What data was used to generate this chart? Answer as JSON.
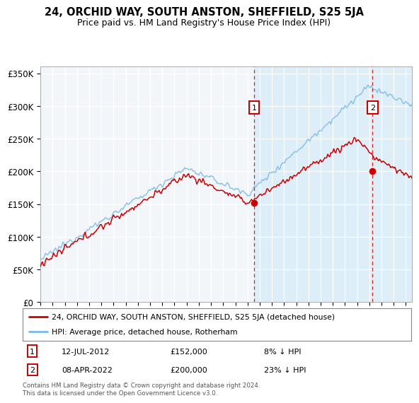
{
  "title": "24, ORCHID WAY, SOUTH ANSTON, SHEFFIELD, S25 5JA",
  "subtitle": "Price paid vs. HM Land Registry's House Price Index (HPI)",
  "legend_line1": "24, ORCHID WAY, SOUTH ANSTON, SHEFFIELD, S25 5JA (detached house)",
  "legend_line2": "HPI: Average price, detached house, Rotherham",
  "annotation1": {
    "label": "1",
    "date": "12-JUL-2012",
    "price": "£152,000",
    "note": "8% ↓ HPI"
  },
  "annotation2": {
    "label": "2",
    "date": "08-APR-2022",
    "price": "£200,000",
    "note": "23% ↓ HPI"
  },
  "footer": "Contains HM Land Registry data © Crown copyright and database right 2024.\nThis data is licensed under the Open Government Licence v3.0.",
  "hpi_color": "#7ab8e8",
  "price_color": "#cc0000",
  "dashed_color": "#cc0000",
  "bg_color_left": "#f0f4f8",
  "bg_color_right": "#ddeeff",
  "ylim": [
    0,
    360000
  ],
  "yticks": [
    0,
    50000,
    100000,
    150000,
    200000,
    250000,
    300000,
    350000
  ],
  "ytick_labels": [
    "£0",
    "£50K",
    "£100K",
    "£150K",
    "£200K",
    "£250K",
    "£300K",
    "£350K"
  ],
  "sale1_x": 2012.54,
  "sale1_y": 152000,
  "sale2_x": 2022.27,
  "sale2_y": 200000,
  "xlim_start": 1995.0,
  "xlim_end": 2025.5
}
